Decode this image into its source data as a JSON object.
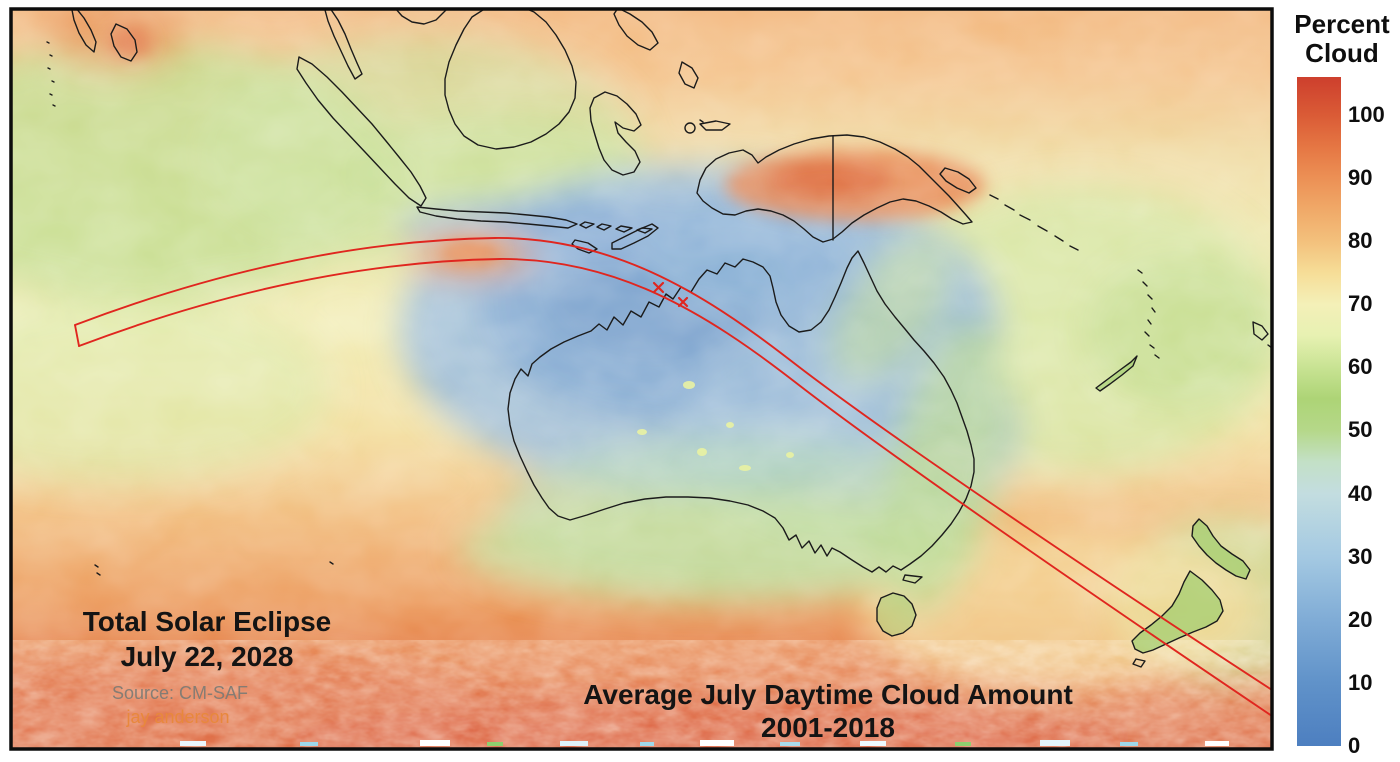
{
  "annotations": {
    "eclipse_title_line1": "Total Solar Eclipse",
    "eclipse_title_line2": "July 22, 2028",
    "source_credit": "Source: CM-SAF",
    "author_credit": "jay anderson",
    "caption_line1": "Average July Daytime Cloud Amount",
    "caption_line2": "2001-2018"
  },
  "eclipse_path": {
    "color": "#e0261f"
  },
  "colorbar": {
    "title_line1": "Percent",
    "title_line2": "Cloud",
    "max_value": 106,
    "ticks": [
      100,
      90,
      80,
      70,
      60,
      50,
      40,
      30,
      20,
      10,
      0
    ],
    "stops": [
      {
        "value": 0,
        "color": "#4d7fc0"
      },
      {
        "value": 10,
        "color": "#6092c9"
      },
      {
        "value": 20,
        "color": "#80acd6"
      },
      {
        "value": 30,
        "color": "#a4c9e2"
      },
      {
        "value": 40,
        "color": "#c3dde0"
      },
      {
        "value": 45,
        "color": "#c3e0c6"
      },
      {
        "value": 50,
        "color": "#b5d889"
      },
      {
        "value": 55,
        "color": "#add476"
      },
      {
        "value": 60,
        "color": "#c8e393"
      },
      {
        "value": 65,
        "color": "#e7f1b2"
      },
      {
        "value": 70,
        "color": "#f4f0b8"
      },
      {
        "value": 75,
        "color": "#f6dd97"
      },
      {
        "value": 80,
        "color": "#f3c07c"
      },
      {
        "value": 85,
        "color": "#f0a968"
      },
      {
        "value": 90,
        "color": "#ec9055"
      },
      {
        "value": 95,
        "color": "#e57643"
      },
      {
        "value": 100,
        "color": "#da5b36"
      },
      {
        "value": 106,
        "color": "#cd3f2d"
      }
    ]
  }
}
